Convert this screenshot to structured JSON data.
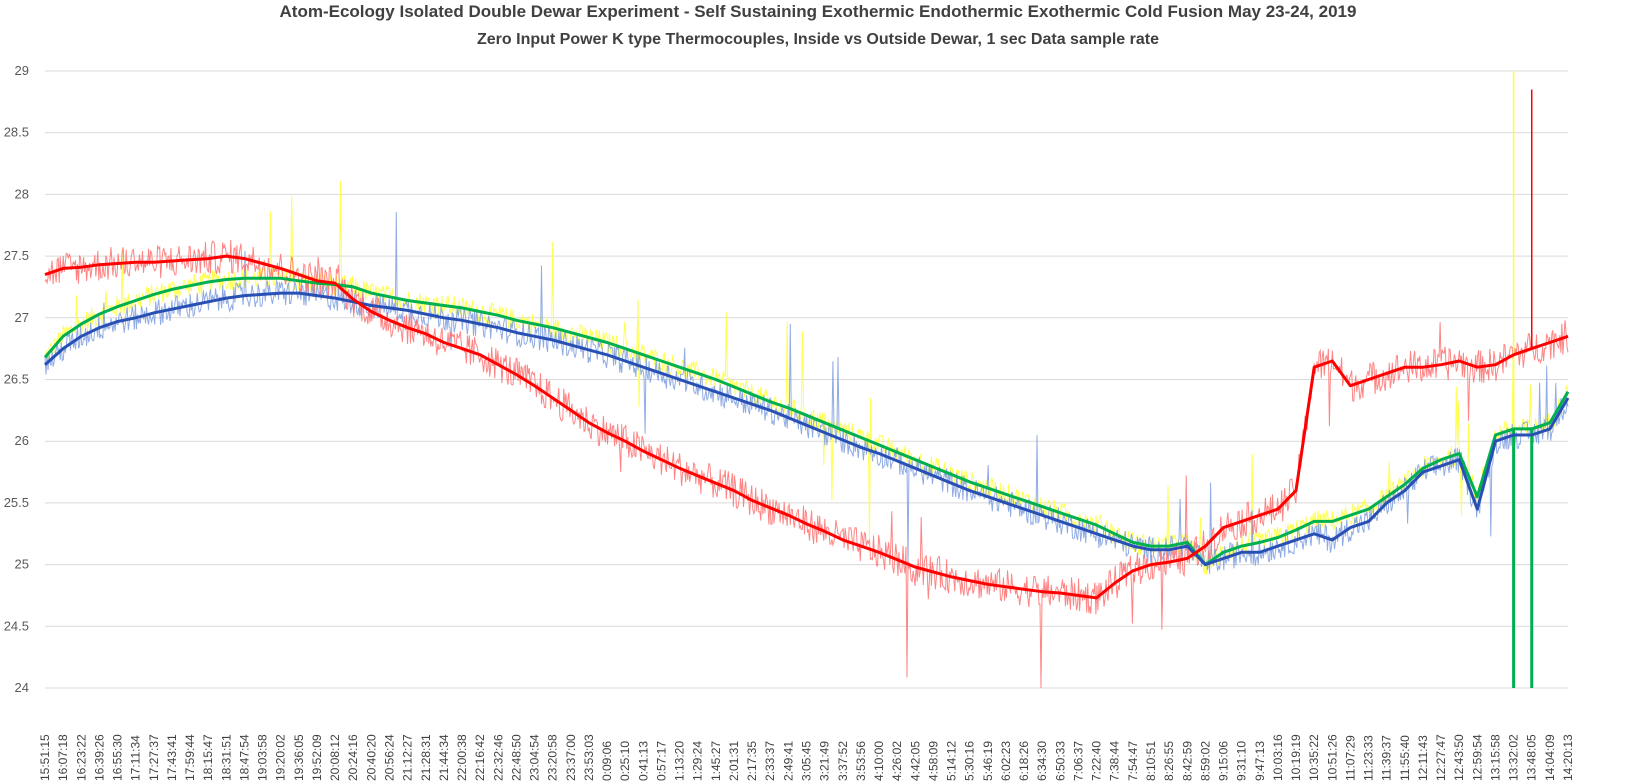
{
  "chart_data": {
    "type": "line",
    "title": "Atom-Ecology Isolated Double Dewar Experiment  - Self Sustaining Exothermic Endothermic Exothermic Cold Fusion May 23-24, 2019",
    "subtitle": "Zero Input  Power K type Thermocouples, Inside vs Outside Dewar, 1 sec Data sample rate",
    "xlabel": "",
    "ylabel": "",
    "ylim": [
      24,
      29
    ],
    "yticks": [
      "24",
      "24.5",
      "25",
      "25.5",
      "26",
      "26.5",
      "27",
      "27.5",
      "28",
      "28.5",
      "29"
    ],
    "grid": true,
    "legend": "none",
    "x": [
      "15:51:15",
      "16:07:18",
      "16:23:22",
      "16:39:26",
      "16:55:30",
      "17:11:34",
      "17:27:37",
      "17:43:41",
      "17:59:44",
      "18:15:47",
      "18:31:51",
      "18:47:54",
      "19:03:58",
      "19:20:02",
      "19:36:05",
      "19:52:09",
      "20:08:12",
      "20:24:16",
      "20:40:20",
      "20:56:24",
      "21:12:27",
      "21:28:31",
      "21:44:34",
      "22:00:38",
      "22:16:42",
      "22:32:46",
      "22:48:50",
      "23:04:54",
      "23:20:58",
      "23:37:00",
      "23:53:03",
      "0:09:06",
      "0:25:10",
      "0:41:13",
      "0:57:17",
      "1:13:20",
      "1:29:24",
      "1:45:27",
      "2:01:31",
      "2:17:35",
      "2:33:37",
      "2:49:41",
      "3:05:45",
      "3:21:49",
      "3:37:52",
      "3:53:56",
      "4:10:00",
      "4:26:02",
      "4:42:05",
      "4:58:09",
      "5:14:12",
      "5:30:16",
      "5:46:19",
      "6:02:23",
      "6:18:26",
      "6:34:30",
      "6:50:33",
      "7:06:37",
      "7:22:40",
      "7:38:44",
      "7:54:47",
      "8:10:51",
      "8:26:55",
      "8:42:59",
      "8:59:02",
      "9:15:06",
      "9:31:10",
      "9:47:13",
      "10:03:16",
      "10:19:19",
      "10:35:22",
      "10:51:26",
      "11:07:29",
      "11:23:33",
      "11:39:37",
      "11:55:40",
      "12:11:43",
      "12:27:47",
      "12:43:50",
      "12:59:54",
      "13:15:58",
      "13:32:02",
      "13:48:05",
      "14:04:09",
      "14:20:13"
    ],
    "series": [
      {
        "color": "#ff0000",
        "raw_color": "#ff7070",
        "noise": 0.14,
        "values": [
          27.35,
          27.4,
          27.41,
          27.43,
          27.44,
          27.45,
          27.45,
          27.46,
          27.47,
          27.48,
          27.5,
          27.48,
          27.44,
          27.4,
          27.35,
          27.3,
          27.28,
          27.15,
          27.05,
          26.98,
          26.92,
          26.87,
          26.8,
          26.75,
          26.7,
          26.62,
          26.54,
          26.45,
          26.35,
          26.25,
          26.15,
          26.07,
          26.0,
          25.92,
          25.85,
          25.78,
          25.72,
          25.66,
          25.6,
          25.52,
          25.46,
          25.4,
          25.33,
          25.27,
          25.2,
          25.15,
          25.1,
          25.04,
          24.98,
          24.94,
          24.9,
          24.87,
          24.84,
          24.82,
          24.8,
          24.78,
          24.77,
          24.75,
          24.73,
          24.85,
          24.95,
          25.0,
          25.02,
          25.05,
          25.15,
          25.3,
          25.35,
          25.4,
          25.45,
          25.6,
          26.6,
          26.65,
          26.45,
          26.5,
          26.55,
          26.6,
          26.6,
          26.62,
          26.65,
          26.6,
          26.62,
          26.7,
          26.75,
          26.8,
          26.85
        ]
      },
      {
        "color": "#2850b4",
        "raw_color": "#7c9ee0",
        "noise": 0.11,
        "values": [
          26.62,
          26.75,
          26.85,
          26.92,
          26.97,
          27.0,
          27.04,
          27.07,
          27.1,
          27.13,
          27.16,
          27.18,
          27.19,
          27.2,
          27.2,
          27.18,
          27.16,
          27.13,
          27.1,
          27.08,
          27.06,
          27.03,
          27.0,
          26.98,
          26.95,
          26.92,
          26.88,
          26.85,
          26.82,
          26.78,
          26.74,
          26.7,
          26.65,
          26.6,
          26.55,
          26.5,
          26.45,
          26.4,
          26.35,
          26.3,
          26.25,
          26.19,
          26.13,
          26.07,
          26.01,
          25.95,
          25.9,
          25.84,
          25.78,
          25.72,
          25.66,
          25.6,
          25.55,
          25.5,
          25.45,
          25.4,
          25.35,
          25.3,
          25.25,
          25.2,
          25.15,
          25.12,
          25.12,
          25.15,
          25.0,
          25.05,
          25.1,
          25.1,
          25.15,
          25.2,
          25.25,
          25.2,
          25.3,
          25.35,
          25.5,
          25.6,
          25.75,
          25.8,
          25.85,
          25.45,
          26.0,
          26.05,
          26.05,
          26.1,
          26.35
        ]
      },
      {
        "color": "#00b050",
        "raw_color": "#ffff33",
        "noise": 0.09,
        "values": [
          26.68,
          26.85,
          26.95,
          27.03,
          27.09,
          27.14,
          27.19,
          27.23,
          27.26,
          27.29,
          27.31,
          27.32,
          27.32,
          27.32,
          27.3,
          27.28,
          27.27,
          27.25,
          27.2,
          27.17,
          27.14,
          27.12,
          27.1,
          27.08,
          27.05,
          27.02,
          26.98,
          26.95,
          26.92,
          26.88,
          26.84,
          26.8,
          26.75,
          26.7,
          26.65,
          26.6,
          26.55,
          26.5,
          26.44,
          26.38,
          26.32,
          26.27,
          26.21,
          26.15,
          26.09,
          26.03,
          25.97,
          25.91,
          25.85,
          25.79,
          25.73,
          25.67,
          25.62,
          25.57,
          25.52,
          25.47,
          25.42,
          25.37,
          25.32,
          25.25,
          25.18,
          25.15,
          25.15,
          25.18,
          25.0,
          25.1,
          25.15,
          25.18,
          25.22,
          25.28,
          25.35,
          25.35,
          25.4,
          25.45,
          25.55,
          25.65,
          25.78,
          25.85,
          25.9,
          25.55,
          26.05,
          26.1,
          26.1,
          26.15,
          26.4
        ]
      }
    ],
    "annotations": [
      {
        "series": "#ffff33",
        "x": "13:32:02",
        "y": 29.0
      },
      {
        "series": "#ff0000",
        "x": "13:48:05",
        "y": 28.85
      },
      {
        "series": "#00b050",
        "x": "13:32:02",
        "y": 24.0
      },
      {
        "series": "#00b050",
        "x": "13:48:05",
        "y": 24.0
      }
    ]
  }
}
